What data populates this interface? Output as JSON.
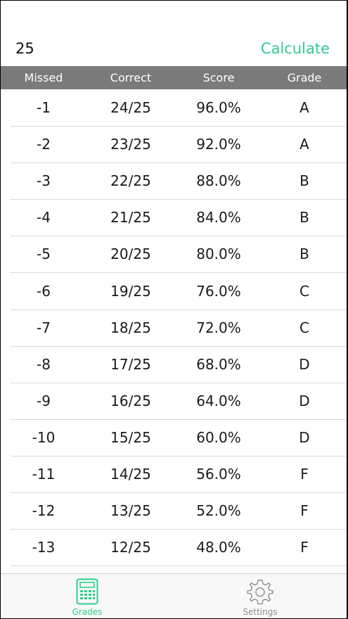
{
  "input": {
    "value": "25"
  },
  "actions": {
    "calculate_label": "Calculate"
  },
  "colors": {
    "accent": "#2ecf8f",
    "header_bg": "#7a7a7a",
    "inactive_tab": "#8e8e93"
  },
  "table": {
    "headers": [
      "Missed",
      "Correct",
      "Score",
      "Grade"
    ],
    "rows": [
      [
        "-1",
        "24/25",
        "96.0%",
        "A"
      ],
      [
        "-2",
        "23/25",
        "92.0%",
        "A"
      ],
      [
        "-3",
        "22/25",
        "88.0%",
        "B"
      ],
      [
        "-4",
        "21/25",
        "84.0%",
        "B"
      ],
      [
        "-5",
        "20/25",
        "80.0%",
        "B"
      ],
      [
        "-6",
        "19/25",
        "76.0%",
        "C"
      ],
      [
        "-7",
        "18/25",
        "72.0%",
        "C"
      ],
      [
        "-8",
        "17/25",
        "68.0%",
        "D"
      ],
      [
        "-9",
        "16/25",
        "64.0%",
        "D"
      ],
      [
        "-10",
        "15/25",
        "60.0%",
        "D"
      ],
      [
        "-11",
        "14/25",
        "56.0%",
        "F"
      ],
      [
        "-12",
        "13/25",
        "52.0%",
        "F"
      ],
      [
        "-13",
        "12/25",
        "48.0%",
        "F"
      ]
    ]
  },
  "tabs": [
    {
      "label": "Grades",
      "icon": "calculator-icon",
      "active": true
    },
    {
      "label": "Settings",
      "icon": "gear-icon",
      "active": false
    }
  ]
}
